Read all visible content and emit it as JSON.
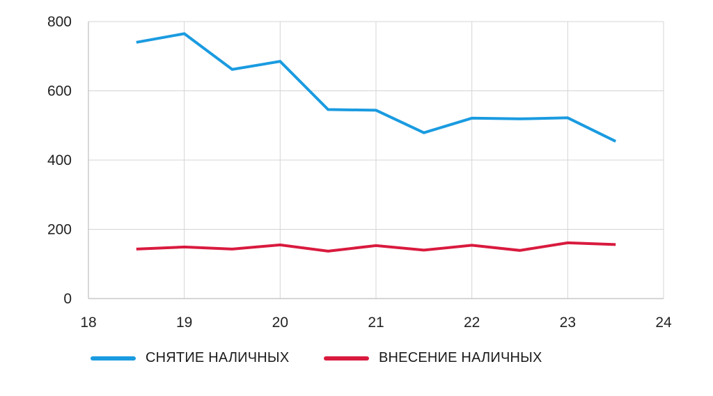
{
  "chart_data": {
    "type": "line",
    "title": "",
    "xlabel": "",
    "ylabel": "",
    "xlim": [
      18,
      24
    ],
    "ylim": [
      0,
      800
    ],
    "x_ticks": [
      "18",
      "19",
      "20",
      "21",
      "22",
      "23",
      "24"
    ],
    "y_ticks": [
      "0",
      "200",
      "400",
      "600",
      "800"
    ],
    "grid": true,
    "legend_position": "bottom",
    "x": [
      18.5,
      19,
      19.5,
      20,
      20.5,
      21,
      21.5,
      22,
      22.5,
      23,
      23.5
    ],
    "series": [
      {
        "name": "СНЯТИЕ НАЛИЧНЫХ",
        "color": "#1a9be0",
        "values": [
          740,
          765,
          662,
          685,
          546,
          544,
          479,
          521,
          519,
          522,
          454
        ]
      },
      {
        "name": "ВНЕСЕНИЕ НАЛИЧНЫХ",
        "color": "#d91a3e",
        "values": [
          143,
          149,
          143,
          155,
          137,
          153,
          140,
          154,
          139,
          161,
          156
        ]
      }
    ]
  }
}
